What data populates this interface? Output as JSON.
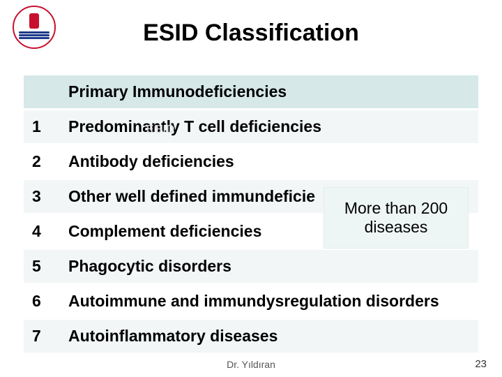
{
  "title": "ESID Classification",
  "table": {
    "header": "Primary Immunodeficiencies",
    "rows": [
      {
        "num": "1",
        "text": " Predominantly T cell deficiencies"
      },
      {
        "num": "2",
        "text": "Antibody deficiencies"
      },
      {
        "num": "3",
        "text": "Other well defined immundeficie"
      },
      {
        "num": "4",
        "text": "Complement deficiencies"
      },
      {
        "num": "5",
        "text": "Phagocytic disorders"
      },
      {
        "num": "6",
        "text": "Autoimmune and immundysregulation disorders"
      },
      {
        "num": "7",
        "text": "Autoinflammatory diseases"
      }
    ]
  },
  "callout": {
    "line1": "More than 200",
    "line2": "diseases"
  },
  "watermark": "ESID",
  "footer": {
    "author": "Dr. Yıldıran",
    "page": "23"
  },
  "colors": {
    "header_bg": "#d6e8e8",
    "row_alt_bg": "#f2f6f7",
    "row_bg": "#ffffff",
    "callout_bg": "#eef5f5",
    "logo_red": "#c8102e",
    "logo_blue": "#1e3a8a"
  }
}
